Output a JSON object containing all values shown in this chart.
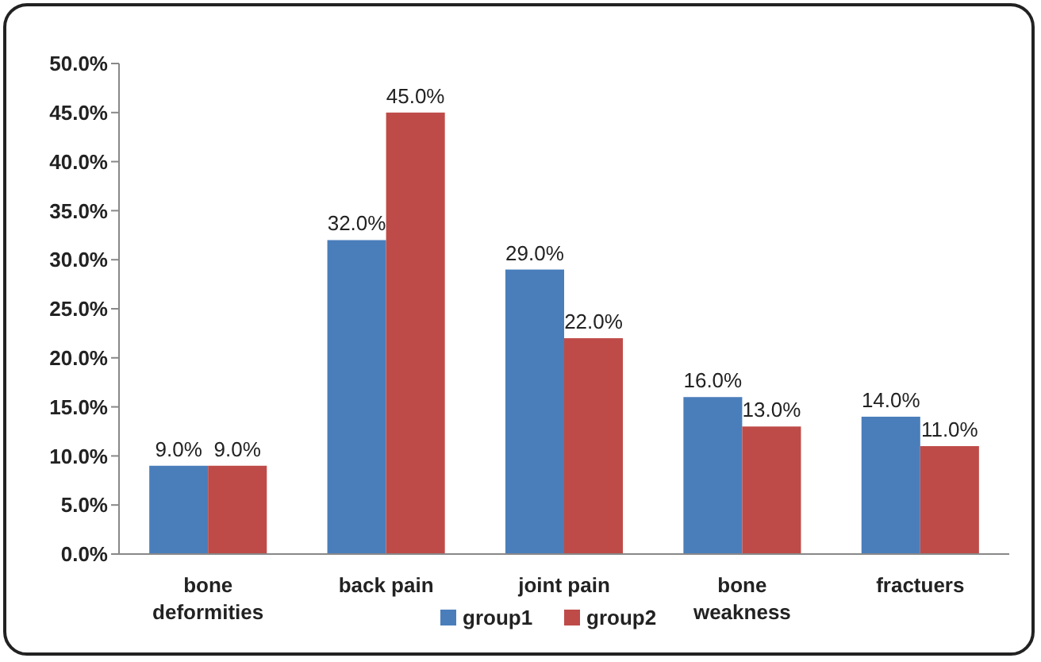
{
  "chart_data": {
    "type": "bar",
    "categories": [
      "bone deformities",
      "back pain",
      "joint pain",
      "bone weakness",
      "fractuers"
    ],
    "series": [
      {
        "name": "group1",
        "color": "#4a7ebb",
        "values": [
          9,
          32,
          29,
          16,
          14
        ],
        "value_labels": [
          "9.0%",
          "32.0%",
          "29.0%",
          "16.0%",
          "14.0%"
        ]
      },
      {
        "name": "group2",
        "color": "#be4b48",
        "values": [
          9,
          45,
          22,
          13,
          11
        ],
        "value_labels": [
          "9.0%",
          "45.0%",
          "22.0%",
          "13.0%",
          "11.0%"
        ]
      }
    ],
    "ylim": [
      0,
      50
    ],
    "yticks": [
      {
        "value": 0,
        "label": "0.0%"
      },
      {
        "value": 5,
        "label": "5.0%"
      },
      {
        "value": 10,
        "label": "10.0%"
      },
      {
        "value": 15,
        "label": "15.0%"
      },
      {
        "value": 20,
        "label": "20.0%"
      },
      {
        "value": 25,
        "label": "25.0%"
      },
      {
        "value": 30,
        "label": "30.0%"
      },
      {
        "value": 35,
        "label": "35.0%"
      },
      {
        "value": 40,
        "label": "40.0%"
      },
      {
        "value": 45,
        "label": "45.0%"
      },
      {
        "value": 50,
        "label": "50.0%"
      }
    ],
    "grid": false,
    "legend": "bottom"
  }
}
